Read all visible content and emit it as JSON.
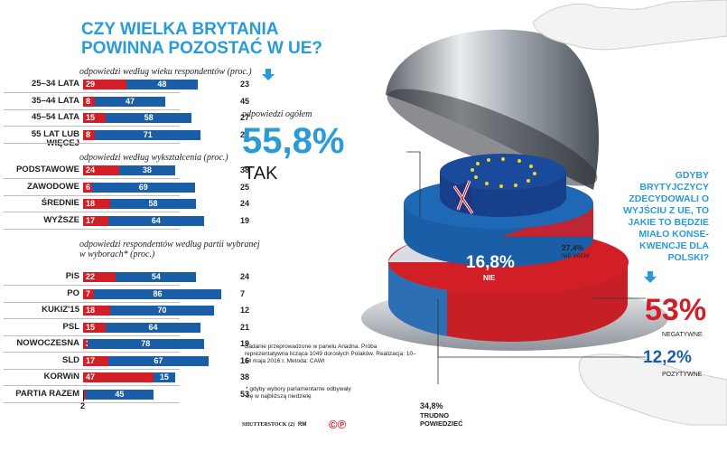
{
  "title": "CZY WIELKA BRYTANIA POWINNA POZOSTAĆ W UE?",
  "colors": {
    "accent": "#2a9bd6",
    "red": "#d21f27",
    "blue": "#1b5ea8",
    "grey": "#c8c8c8"
  },
  "sections": [
    {
      "heading": "odpowiedzi według wieku respondentów (proc.)"
    },
    {
      "heading": "odpowiedzi według wykształcenia (proc.)"
    },
    {
      "heading": "odpowiedzi respondentów według partii wybranej w wyborach* (proc.)"
    }
  ],
  "overall": {
    "label": "odpowiedzi ogółem",
    "value": "55,8%",
    "answer": "TAK"
  },
  "cake_labels": {
    "nie_value": "16,8%",
    "nie_label": "NIE",
    "niewiem_value": "27,4%",
    "niewiem_label": "NIE WIEM"
  },
  "right_question": "GDYBY BRYTYJCZYCY ZDECYDOWALI O WYJŚCIU Z UE, TO JAKIE TO BĘDZIE MIAŁO KONSE-KWENCJE DLA POLSKI?",
  "right_answers": [
    {
      "value": "53%",
      "label": "NEGATYWNE"
    },
    {
      "value": "12,2%",
      "label": "POZYTYWNE"
    },
    {
      "value": "34,8%",
      "label": "TRUDNO POWIEDZIEĆ"
    }
  ],
  "methodology": "Badanie przeprowadzone w panelu Ariadna. Próba reprezentatywna licząca 1049 dorosłych Polaków. Realizacja: 10–14 maja 2016 r. Metoda: CAWI",
  "footnote": "* gdyby wybory parlamentarne odbywały się w najbliższą niedzielę",
  "credits": {
    "photo": "SHUTTERSTOCK (2)",
    "author": "RM",
    "copyright": "©℗"
  },
  "chart_data": [
    {
      "type": "bar",
      "title": "odpowiedzi według wieku respondentów (proc.)",
      "categories": [
        "25–34 LATA",
        "35–44 LATA",
        "45–54 LATA",
        "55 LAT LUB WIĘCEJ"
      ],
      "series": [
        {
          "name": "NIE",
          "values": [
            29,
            8,
            15,
            8
          ]
        },
        {
          "name": "TAK",
          "values": [
            48,
            47,
            58,
            71
          ]
        },
        {
          "name": "NIE WIEM",
          "values": [
            23,
            45,
            27,
            21
          ]
        }
      ]
    },
    {
      "type": "bar",
      "title": "odpowiedzi według wykształcenia (proc.)",
      "categories": [
        "PODSTAWOWE",
        "ZAWODOWE",
        "ŚREDNIE",
        "WYŻSZE"
      ],
      "series": [
        {
          "name": "NIE",
          "values": [
            24,
            6,
            18,
            17
          ]
        },
        {
          "name": "TAK",
          "values": [
            38,
            69,
            58,
            64
          ]
        },
        {
          "name": "NIE WIEM",
          "values": [
            38,
            25,
            24,
            19
          ]
        }
      ]
    },
    {
      "type": "bar",
      "title": "odpowiedzi respondentów według partii wybranej w wyborach* (proc.)",
      "categories": [
        "PiS",
        "PO",
        "KUKIZ'15",
        "PSL",
        "NOWOCZESNA",
        "SLD",
        "KORWiN",
        "PARTIA RAZEM"
      ],
      "series": [
        {
          "name": "NIE",
          "values": [
            22,
            7,
            18,
            15,
            3,
            17,
            47,
            2
          ]
        },
        {
          "name": "TAK",
          "values": [
            54,
            86,
            70,
            64,
            78,
            67,
            15,
            45
          ]
        },
        {
          "name": "NIE WIEM",
          "values": [
            24,
            7,
            12,
            21,
            19,
            16,
            38,
            53
          ]
        }
      ]
    },
    {
      "type": "pie",
      "title": "CZY WIELKA BRYTANIA POWINNA POZOSTAĆ W UE?",
      "categories": [
        "TAK",
        "NIE",
        "NIE WIEM"
      ],
      "values": [
        55.8,
        16.8,
        27.4
      ]
    },
    {
      "type": "pie",
      "title": "GDYBY BRYTYJCZYCY ZDECYDOWALI O WYJŚCIU Z UE, TO JAKIE TO BĘDZIE MIAŁO KONSEKWENCJE DLA POLSKI?",
      "categories": [
        "NEGATYWNE",
        "POZYTYWNE",
        "TRUDNO POWIEDZIEĆ"
      ],
      "values": [
        53,
        12.2,
        34.8
      ]
    }
  ]
}
